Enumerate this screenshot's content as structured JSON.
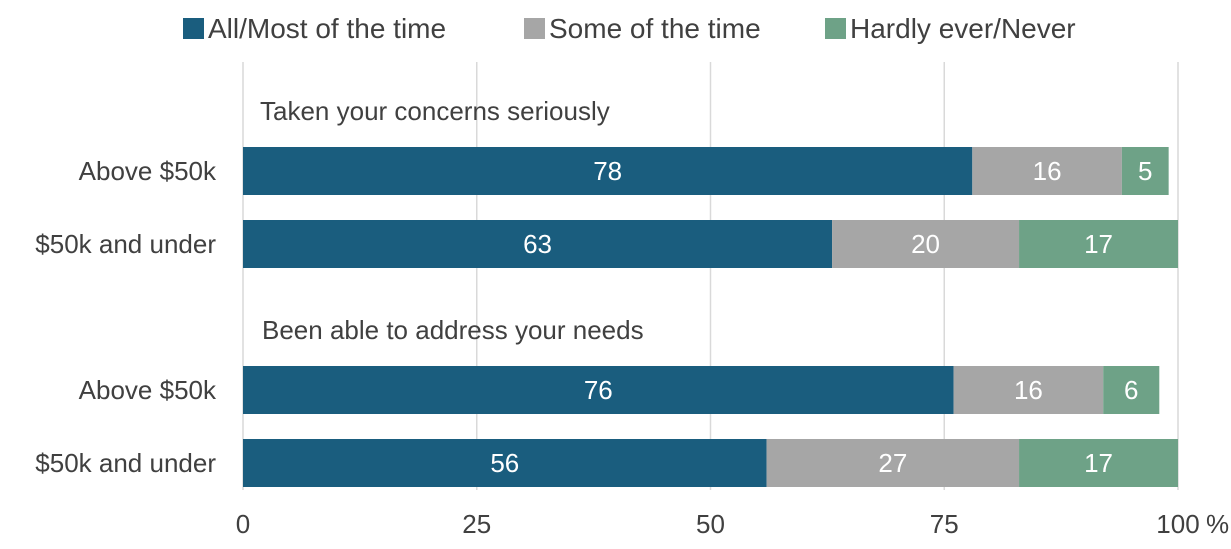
{
  "chart_data": {
    "type": "bar",
    "orientation": "horizontal",
    "stacked": true,
    "legend_position": "top",
    "grid": true,
    "xlim": [
      0,
      100
    ],
    "x_ticks": [
      0,
      25,
      50,
      75,
      100
    ],
    "x_tick_labels": [
      "0",
      "25",
      "50",
      "75",
      "100"
    ],
    "x_unit": "%",
    "series": [
      {
        "name": "All/Most of the time",
        "color": "#1a5d7e"
      },
      {
        "name": "Some of the time",
        "color": "#a6a6a6"
      },
      {
        "name": "Hardly ever/Never",
        "color": "#6ea287"
      }
    ],
    "groups": [
      {
        "label": "Taken your concerns seriously",
        "rows": [
          {
            "category": "Above $50k",
            "values": [
              78,
              16,
              5
            ]
          },
          {
            "category": "$50k and under",
            "values": [
              63,
              20,
              17
            ]
          }
        ]
      },
      {
        "label": "Been able to address your needs",
        "rows": [
          {
            "category": "Above $50k",
            "values": [
              76,
              16,
              6
            ]
          },
          {
            "category": "$50k and under",
            "values": [
              56,
              27,
              17
            ]
          }
        ]
      }
    ]
  }
}
